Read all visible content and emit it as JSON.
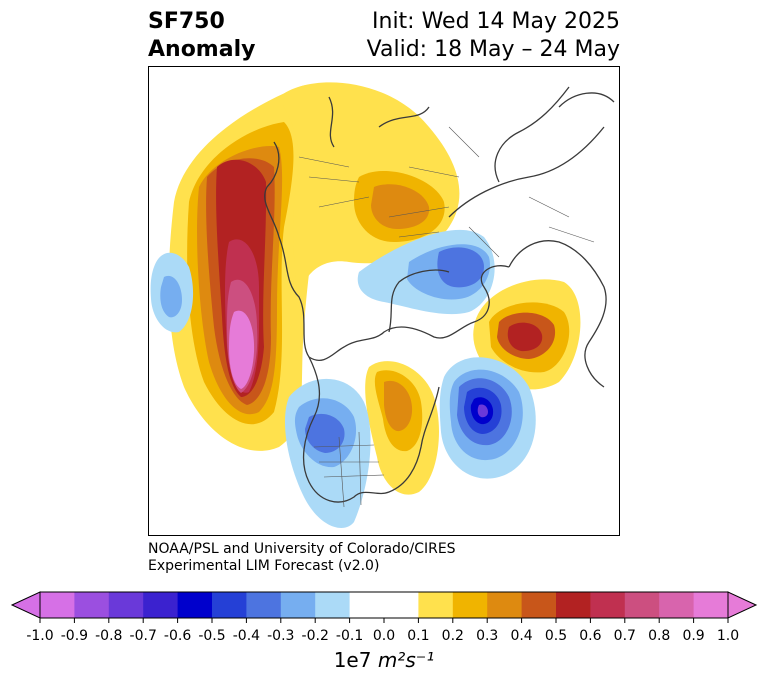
{
  "header": {
    "title_line1": "SF750",
    "title_line2": "Anomaly",
    "init": "Init: Wed 14 May 2025",
    "valid": "Valid: 18 May – 24 May"
  },
  "credit": {
    "line1": "NOAA/PSL and University of Colorado/CIRES",
    "line2": "Experimental LIM Forecast (v2.0)"
  },
  "colorbar": {
    "ticks": [
      "-1.0",
      "-0.9",
      "-0.8",
      "-0.7",
      "-0.6",
      "-0.5",
      "-0.4",
      "-0.3",
      "-0.2",
      "-0.1",
      "0.0",
      "0.1",
      "0.2",
      "0.3",
      "0.4",
      "0.5",
      "0.6",
      "0.7",
      "0.8",
      "0.9",
      "1.0"
    ],
    "colors": [
      "#d670e6",
      "#9b4fe0",
      "#6a39d9",
      "#3b22cf",
      "#0000cc",
      "#2540d6",
      "#4d74e0",
      "#76aef0",
      "#abdaf7",
      "#ffffff",
      "#ffffff",
      "#ffe14d",
      "#f0b400",
      "#de8a10",
      "#c8561a",
      "#b22222",
      "#c03050",
      "#cc4f80",
      "#d864ad",
      "#e67bd8"
    ],
    "units_prefix": "1e7 ",
    "units_math": "m²s⁻¹"
  },
  "map": {
    "legend_colors": {
      "positive_strong": "#e67bd8",
      "positive": "#b22222",
      "weak_positive": "#ffe14d",
      "negative_strong": "#0000cc",
      "weak_negative": "#abdaf7"
    }
  }
}
